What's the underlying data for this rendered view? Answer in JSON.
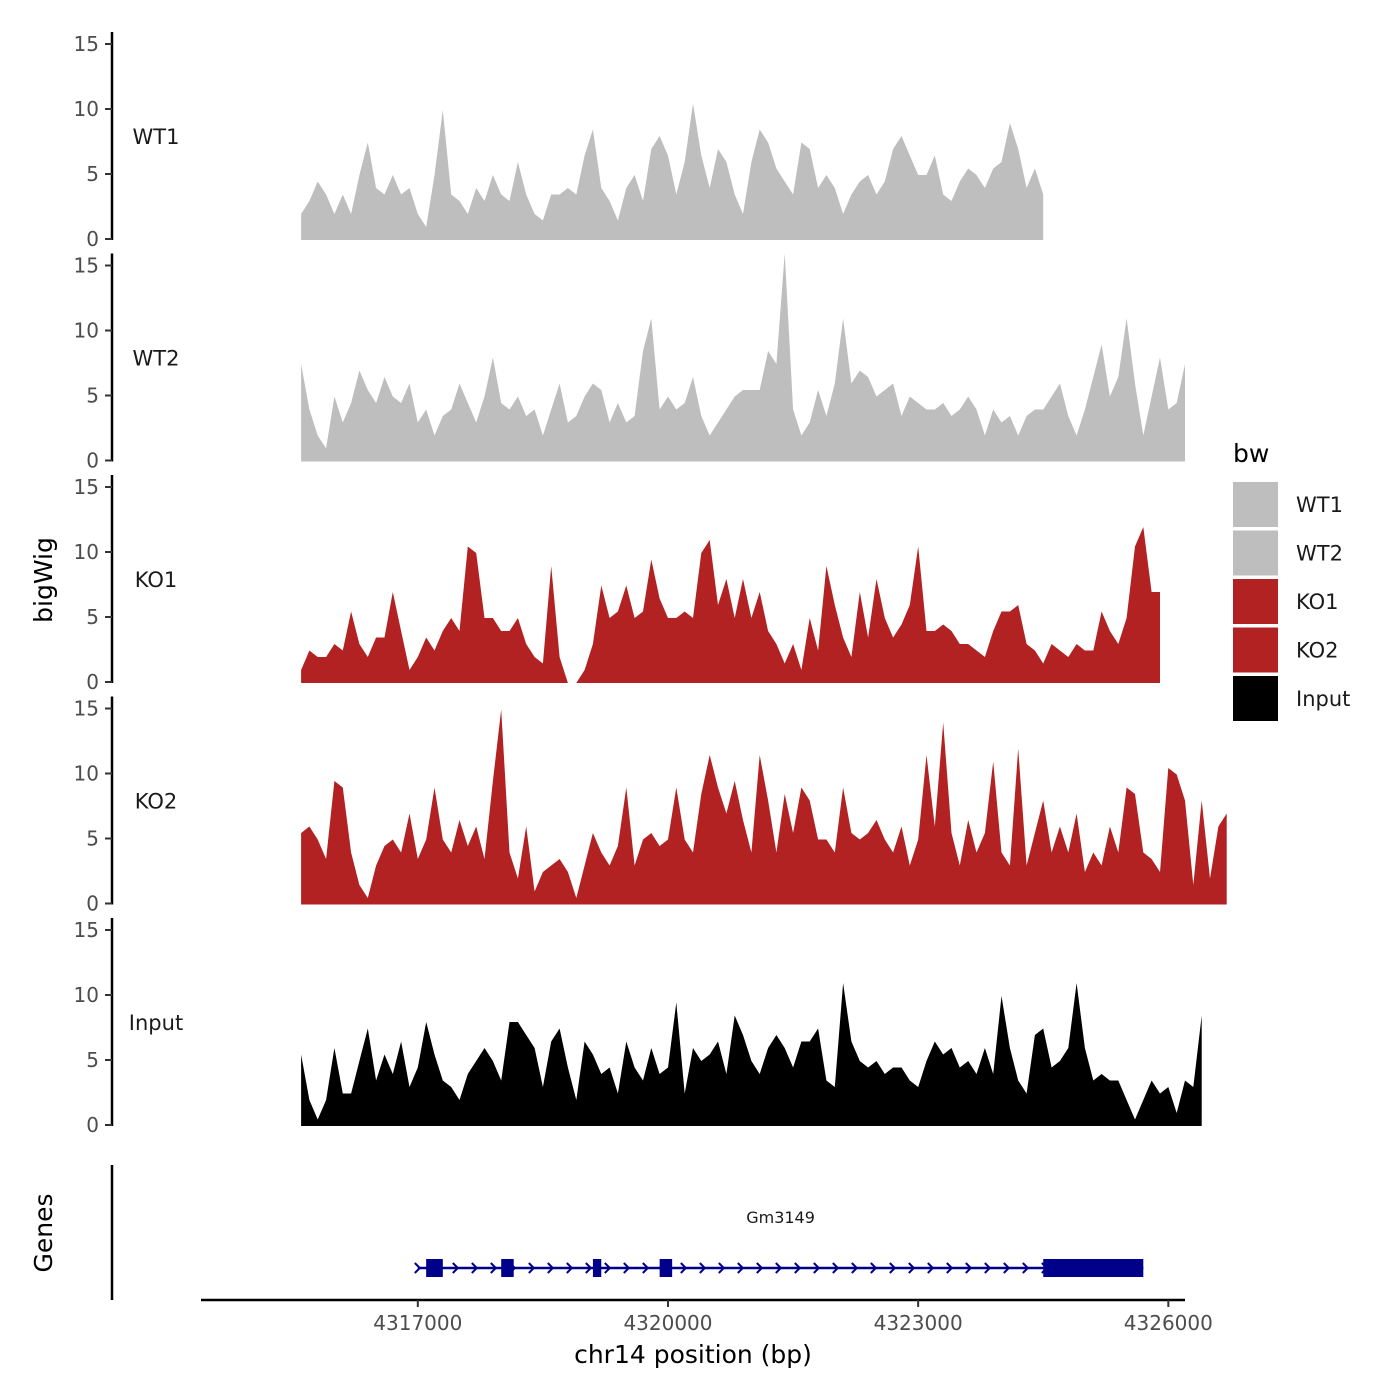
{
  "chart_data": {
    "type": "area",
    "title": "",
    "xlabel": "chr14 position (bp)",
    "ylabel": "bigWig",
    "genes_label": "Genes",
    "xlim": [
      4314400,
      4326200
    ],
    "x_ticks": [
      4317000,
      4320000,
      4323000,
      4326000
    ],
    "x_tick_labels": [
      "4317000",
      "4320000",
      "4323000",
      "4326000"
    ],
    "ylim": [
      0,
      16
    ],
    "y_ticks": [
      0,
      5,
      10,
      15
    ],
    "y_tick_labels": [
      "0",
      "5",
      "10",
      "15"
    ],
    "grid": false,
    "x_start": 4315600,
    "x_step": 100,
    "legend": {
      "title": "bw",
      "position": "right",
      "entries": [
        {
          "label": "WT1",
          "color": "#bebebe"
        },
        {
          "label": "WT2",
          "color": "#bebebe"
        },
        {
          "label": "KO1",
          "color": "#b22222"
        },
        {
          "label": "KO2",
          "color": "#b22222"
        },
        {
          "label": "Input",
          "color": "#000000"
        }
      ]
    },
    "series": [
      {
        "name": "WT1",
        "color": "#bebebe",
        "values": [
          2,
          3,
          4.5,
          3.5,
          2,
          3.5,
          2,
          5,
          7.5,
          4,
          3.5,
          5,
          3.5,
          4,
          2,
          1,
          5,
          10,
          3.5,
          3,
          2,
          4,
          3,
          5,
          3.5,
          3,
          6,
          3.5,
          2,
          1.5,
          3.5,
          3.5,
          4,
          3.5,
          6.5,
          8.5,
          4,
          3,
          1.5,
          4,
          5,
          3,
          7,
          8,
          6.5,
          3.5,
          6,
          10.5,
          6.5,
          4,
          7,
          6,
          3.5,
          2,
          6,
          8.5,
          7.5,
          5.5,
          4.5,
          3.5,
          7.5,
          7,
          4,
          5,
          4,
          2,
          3.5,
          4.5,
          5,
          3.5,
          4.5,
          7,
          8,
          6.5,
          5,
          5,
          6.5,
          3.5,
          3,
          4.5,
          5.5,
          5,
          4,
          5.5,
          6,
          9,
          7,
          4,
          5.5,
          3.5
        ]
      },
      {
        "name": "WT2",
        "color": "#bebebe",
        "values": [
          7.5,
          4,
          2,
          1,
          5,
          3,
          4.5,
          7,
          5.5,
          4.5,
          6.5,
          5,
          4.5,
          6,
          3,
          4,
          2,
          3.5,
          4,
          6,
          4.5,
          3,
          5,
          8,
          4.5,
          4,
          5,
          3.5,
          4,
          2,
          4,
          6,
          3,
          3.5,
          5,
          6,
          5.5,
          3,
          4.5,
          3,
          3.5,
          8.5,
          11,
          4,
          5,
          4,
          4.5,
          6.5,
          3.5,
          2,
          3,
          4,
          5,
          5.5,
          5.5,
          5.5,
          8.5,
          7.5,
          16,
          4,
          2,
          3,
          5.5,
          3.5,
          6,
          11,
          6,
          7,
          6.5,
          5,
          5.5,
          6,
          3.5,
          5,
          4.5,
          4,
          4,
          4.5,
          3.5,
          4,
          5,
          4,
          2,
          4,
          3,
          3.5,
          2,
          3.5,
          4,
          4,
          5,
          6,
          3.5,
          2,
          4,
          6.5,
          9,
          5,
          6.5,
          11,
          6,
          2,
          5,
          8,
          4,
          4.5,
          7.5
        ]
      },
      {
        "name": "KO1",
        "color": "#b22222",
        "values": [
          1,
          2.5,
          2,
          2,
          3,
          2.5,
          5.5,
          3,
          2,
          3.5,
          3.5,
          7,
          4,
          1,
          2,
          3.5,
          2.5,
          4,
          5,
          4,
          10.5,
          10,
          5,
          5,
          4,
          4,
          5,
          3,
          2,
          1.5,
          9,
          2,
          0,
          0,
          1,
          3,
          7.5,
          5,
          5.5,
          7.5,
          5,
          5.5,
          9.5,
          6.5,
          5,
          5,
          5.5,
          5,
          10,
          11,
          6,
          8,
          5,
          8,
          5,
          7,
          4,
          3,
          1.5,
          3,
          1,
          5,
          2.5,
          9,
          6,
          3.5,
          2,
          7,
          3.5,
          8,
          5,
          3.5,
          4.5,
          6,
          10.5,
          4,
          4,
          4.5,
          4,
          3,
          3,
          2.5,
          2,
          4,
          5.5,
          5.5,
          6,
          3,
          2.5,
          1.5,
          3,
          2.5,
          2,
          3,
          2.5,
          2.5,
          5.5,
          4,
          3,
          5,
          10.5,
          12,
          7,
          7
        ]
      },
      {
        "name": "KO2",
        "color": "#b22222",
        "values": [
          5.5,
          6,
          5,
          3.5,
          9.5,
          9,
          4,
          1.5,
          0.5,
          3,
          4.5,
          5,
          4,
          7,
          3.5,
          5,
          9,
          5,
          4,
          6.5,
          4.5,
          6,
          3.5,
          9.5,
          15,
          4,
          2,
          6,
          1,
          2.5,
          3,
          3.5,
          2.5,
          0.5,
          3,
          5.5,
          4,
          3,
          4.5,
          9,
          3,
          5,
          5.5,
          4.5,
          5,
          9,
          5,
          4,
          8.5,
          11.5,
          9,
          7,
          9.5,
          6.5,
          4,
          11.5,
          8,
          4,
          8.5,
          5.5,
          9,
          8,
          5,
          5,
          4,
          9,
          5.5,
          5,
          5.5,
          6.5,
          5,
          4,
          6,
          3,
          5,
          11.5,
          6,
          14,
          5.5,
          3,
          6.5,
          4,
          5.5,
          11,
          4,
          3,
          12,
          3,
          5.5,
          8,
          4,
          6,
          4,
          7,
          2.5,
          4,
          3,
          6,
          4,
          9,
          8.5,
          4,
          3.5,
          2.5,
          10.5,
          10,
          8,
          1.5,
          8,
          2,
          6,
          7
        ]
      },
      {
        "name": "Input",
        "color": "#000000",
        "values": [
          5.5,
          2,
          0.5,
          2,
          6,
          2.5,
          2.5,
          5,
          7.5,
          3.5,
          5.5,
          4,
          6.5,
          3,
          4.5,
          8,
          5.5,
          3.5,
          3,
          2,
          4,
          5,
          6,
          5,
          3.5,
          8,
          8,
          7,
          6,
          3,
          6.5,
          7.5,
          4.5,
          2,
          6.5,
          5.5,
          4,
          4.5,
          2.5,
          6.5,
          4.5,
          3.5,
          6,
          4,
          4.5,
          9.5,
          2.5,
          6,
          5,
          5.5,
          6.5,
          4,
          8.5,
          7,
          5,
          4,
          6,
          7,
          6,
          4.5,
          6.5,
          6.5,
          7.5,
          3.5,
          3,
          11,
          6.5,
          5,
          4.5,
          5,
          4,
          4.5,
          4.5,
          3.5,
          3,
          5,
          6.5,
          5.5,
          6,
          4.5,
          5,
          4,
          6,
          4,
          10,
          6,
          3.5,
          2.5,
          7,
          7.5,
          4.5,
          5,
          6,
          11,
          6,
          3.5,
          4,
          3.5,
          3.5,
          2,
          0.5,
          2,
          3.5,
          2.5,
          3,
          1,
          3.5,
          3,
          8.5
        ]
      }
    ],
    "gene_tracks": [
      {
        "name": "Gm3149",
        "color": "#00008b",
        "strand": "+",
        "start": 4317000,
        "end": 4325700,
        "exons": [
          [
            4317100,
            4317300
          ],
          [
            4318000,
            4318150
          ],
          [
            4319100,
            4319200
          ],
          [
            4319900,
            4320050
          ],
          [
            4324500,
            4325700
          ]
        ]
      }
    ]
  }
}
